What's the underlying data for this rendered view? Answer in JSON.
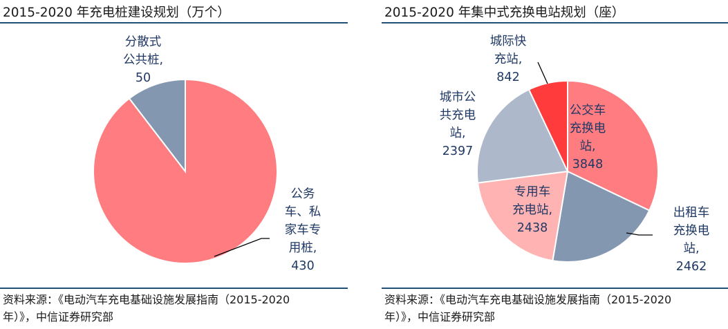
{
  "chart_data": [
    {
      "type": "pie",
      "title": "2015-2020 年充电桩建设规划（万个）",
      "slices": [
        {
          "label": "公务车、私家车专用桩",
          "label_lines": [
            "公务",
            "车、私",
            "家车专",
            "用桩,"
          ],
          "value": 430,
          "value_text": "430",
          "color": "#ff7c80"
        },
        {
          "label": "分散式公共桩",
          "label_lines": [
            "分散式",
            "公共桩,"
          ],
          "value": 50,
          "value_text": "50",
          "color": "#8497b0"
        }
      ],
      "source": [
        "资料来源：《电动汽车充电基础设施发展指南（2015-2020",
        "年）》，中信证券研究部"
      ]
    },
    {
      "type": "pie",
      "title": "2015-2020 年集中式充换电站规划（座）",
      "slices": [
        {
          "label": "公交车充换电站",
          "label_lines": [
            "公交车",
            "充换电",
            "站,"
          ],
          "value": 3848,
          "value_text": "3848",
          "color": "#ff7c80"
        },
        {
          "label": "出租车充换电站",
          "label_lines": [
            "出租车",
            "充换电",
            "站,"
          ],
          "value": 2462,
          "value_text": "2462",
          "color": "#8497b0"
        },
        {
          "label": "专用车充电站",
          "label_lines": [
            "专用车",
            "充电站,"
          ],
          "value": 2438,
          "value_text": "2438",
          "color": "#ffb3b3"
        },
        {
          "label": "城市公共充电站",
          "label_lines": [
            "城市公",
            "共充电",
            "站,"
          ],
          "value": 2397,
          "value_text": "2397",
          "color": "#adb9ca"
        },
        {
          "label": "城际快充站",
          "label_lines": [
            "城际快",
            "充站,"
          ],
          "value": 842,
          "value_text": "842",
          "color": "#ff3b3b"
        }
      ],
      "source": [
        "资料来源：《电动汽车充电基础设施发展指南（2015-2020",
        "年）》，中信证券研究部"
      ]
    }
  ]
}
